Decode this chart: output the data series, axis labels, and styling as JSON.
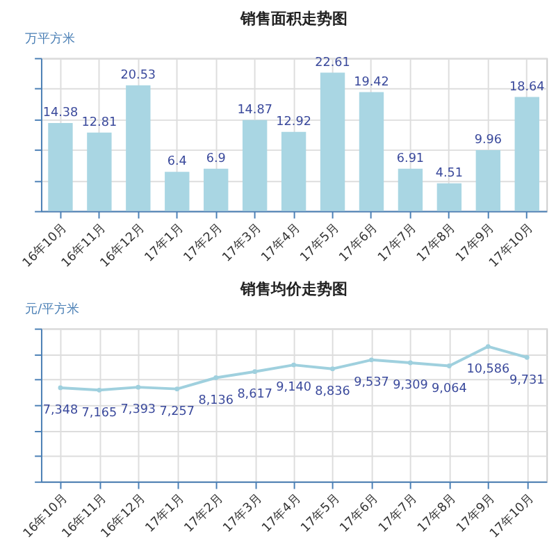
{
  "chart_data": [
    {
      "type": "bar",
      "title": "销售面积走势图",
      "ylabel": "万平方米",
      "categories": [
        "16年10月",
        "16年11月",
        "16年12月",
        "17年1月",
        "17年2月",
        "17年3月",
        "17年4月",
        "17年5月",
        "17年6月",
        "17年7月",
        "17年8月",
        "17年9月",
        "17年10月"
      ],
      "values": [
        14.38,
        12.81,
        20.53,
        6.4,
        6.9,
        14.87,
        12.92,
        22.61,
        19.42,
        6.91,
        4.51,
        9.96,
        18.64
      ],
      "color": "#a9d6e3",
      "ylim": [
        0,
        25
      ],
      "tick_labels": "x",
      "grid": true,
      "data_labels": true
    },
    {
      "type": "line",
      "title": "销售均价走势图",
      "ylabel": "元/平方米",
      "categories": [
        "16年10月",
        "16年11月",
        "16年12月",
        "17年1月",
        "17年2月",
        "17年3月",
        "17年4月",
        "17年5月",
        "17年6月",
        "17年7月",
        "17年8月",
        "17年9月",
        "17年10月"
      ],
      "values": [
        7348,
        7165,
        7393,
        7257,
        8136,
        8617,
        9140,
        8836,
        9537,
        9309,
        9064,
        10586,
        9731
      ],
      "value_labels": [
        "7,348",
        "7,165",
        "7,393",
        "7,257",
        "8,136",
        "8,617",
        "9,140",
        "8,836",
        "9,537",
        "9,309",
        "9,064",
        "10,586",
        "9,731"
      ],
      "color": "#9fd0de",
      "marker": "circle",
      "ylim": [
        0,
        12000
      ],
      "tick_labels": "x",
      "grid": true
    }
  ]
}
